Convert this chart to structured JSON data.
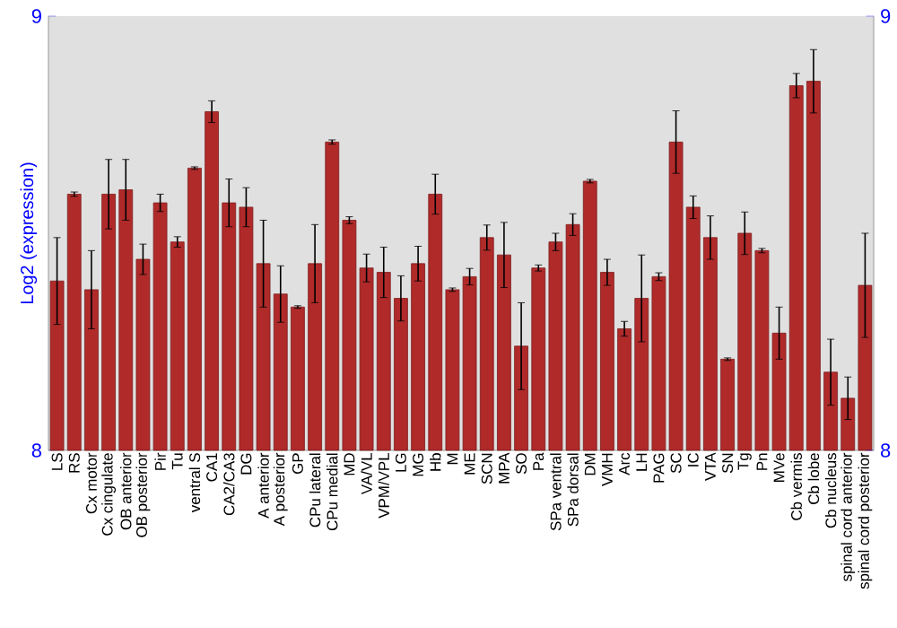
{
  "chart_data": {
    "type": "bar",
    "ylabel": "Log2 (expression)",
    "categories": [
      "LS",
      "RS",
      "Cx motor",
      "Cx cingulate",
      "OB anterior",
      "OB posterior",
      "Pir",
      "Tu",
      "ventral S",
      "CA1",
      "CA2/CA3",
      "DG",
      "A anterior",
      "A posterior",
      "GP",
      "CPu lateral",
      "CPu medial",
      "MD",
      "VA/VL",
      "VPM/VPL",
      "LG",
      "MG",
      "Hb",
      "M",
      "ME",
      "SCN",
      "MPA",
      "SO",
      "Pa",
      "SPa ventral",
      "SPa dorsal",
      "DM",
      "VMH",
      "Arc",
      "LH",
      "PAG",
      "SC",
      "IC",
      "VTA",
      "SN",
      "Tg",
      "Pn",
      "MVe",
      "Cb vermis",
      "Cb lobe",
      "Cb nucleus",
      "spinal cord anterior",
      "spinal cord posterior"
    ],
    "values": [
      8.39,
      8.59,
      8.37,
      8.59,
      8.6,
      8.44,
      8.57,
      8.48,
      8.65,
      8.78,
      8.57,
      8.56,
      8.43,
      8.36,
      8.33,
      8.43,
      8.71,
      8.53,
      8.42,
      8.41,
      8.35,
      8.43,
      8.59,
      8.37,
      8.4,
      8.49,
      8.45,
      8.24,
      8.42,
      8.48,
      8.52,
      8.62,
      8.41,
      8.28,
      8.35,
      8.4,
      8.71,
      8.56,
      8.49,
      8.21,
      8.5,
      8.46,
      8.27,
      8.84,
      8.85,
      8.18,
      8.12,
      8.38
    ],
    "errors": [
      0.1,
      0.005,
      0.09,
      0.08,
      0.07,
      0.035,
      0.02,
      0.012,
      0.003,
      0.025,
      0.055,
      0.045,
      0.1,
      0.065,
      0.003,
      0.09,
      0.005,
      0.008,
      0.032,
      0.058,
      0.052,
      0.04,
      0.046,
      0.004,
      0.019,
      0.029,
      0.075,
      0.1,
      0.007,
      0.02,
      0.025,
      0.004,
      0.03,
      0.017,
      0.1,
      0.009,
      0.072,
      0.026,
      0.05,
      0.003,
      0.049,
      0.005,
      0.06,
      0.028,
      0.073,
      0.076,
      0.049,
      0.12
    ],
    "color": "#b02a2a",
    "ylim": [
      8,
      9
    ],
    "yticks": [
      8,
      9
    ],
    "y2lim": [
      8,
      9
    ],
    "y2ticks": [
      8,
      9
    ],
    "grid": false
  }
}
